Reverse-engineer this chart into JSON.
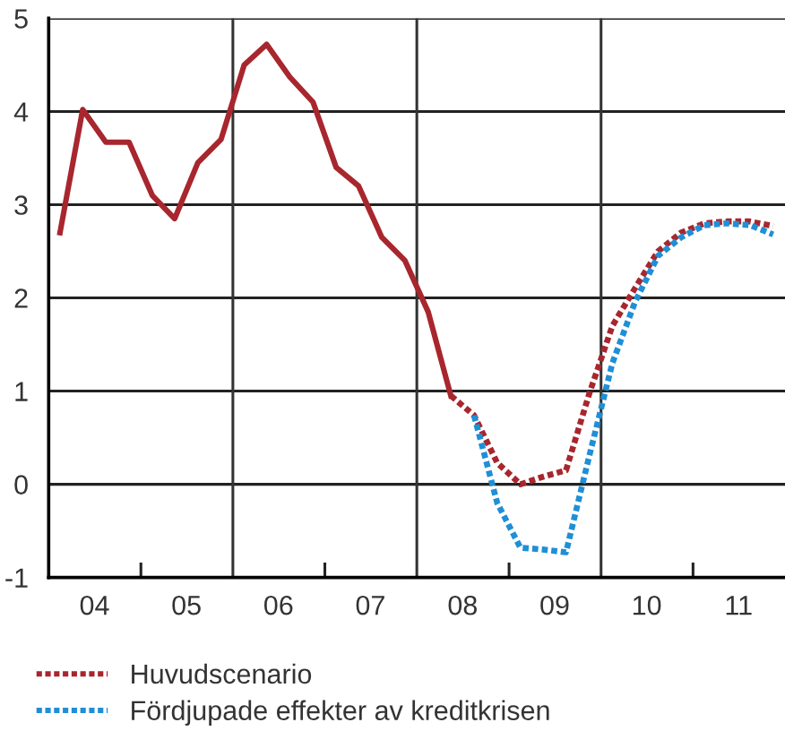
{
  "chart_data": {
    "type": "line",
    "xlim": [
      "2004-01-01",
      "2012-01-01"
    ],
    "ylim": [
      -1,
      5
    ],
    "yticks": [
      -1,
      0,
      1,
      2,
      3,
      4,
      5
    ],
    "xticks": [
      {
        "value": "2005-01-01",
        "label": null
      },
      {
        "value": "2007-01-01",
        "label": null
      },
      {
        "value": "2009-01-01",
        "label": null
      },
      {
        "value": "2011-01-01",
        "label": null
      },
      {
        "value": "2004-07-01",
        "label": "04"
      },
      {
        "value": "2005-07-01",
        "label": "05"
      },
      {
        "value": "2006-07-01",
        "label": "06"
      },
      {
        "value": "2007-07-01",
        "label": "07"
      },
      {
        "value": "2008-07-01",
        "label": "08"
      },
      {
        "value": "2009-07-01",
        "label": "09"
      },
      {
        "value": "2010-07-01",
        "label": "10"
      },
      {
        "value": "2011-07-01",
        "label": "11"
      }
    ],
    "ref_lines": [
      {
        "axis": "x",
        "value": "2006-01-01",
        "color": "#333333"
      },
      {
        "axis": "x",
        "value": "2008-01-01",
        "color": "#333333"
      },
      {
        "axis": "x",
        "value": "2010-01-01",
        "color": "#333333"
      }
    ],
    "grid": "y",
    "legend": "bottom",
    "marker": "none",
    "series": [
      {
        "color": "#a8262e",
        "line_style": "solid",
        "x": [
          "2004-02-15",
          "2004-05-15",
          "2004-08-15",
          "2004-11-15",
          "2005-02-15",
          "2005-05-15",
          "2005-08-15",
          "2005-11-15",
          "2006-02-15",
          "2006-05-15",
          "2006-08-15",
          "2006-11-15",
          "2007-02-15",
          "2007-05-15",
          "2007-08-15",
          "2007-11-15",
          "2008-02-15",
          "2008-05-15"
        ],
        "values": [
          2.7,
          4.02,
          3.67,
          3.67,
          3.1,
          2.85,
          3.45,
          3.7,
          4.5,
          4.72,
          4.37,
          4.1,
          3.4,
          3.2,
          2.65,
          2.4,
          1.85,
          0.95
        ]
      },
      {
        "name": "Huvudscenario",
        "color": "#a8262e",
        "line_style": "dotted",
        "x": [
          "2008-05-15",
          "2008-08-15",
          "2008-11-15",
          "2009-02-15",
          "2009-05-15",
          "2009-08-15",
          "2009-11-15",
          "2010-02-15",
          "2010-05-15",
          "2010-08-15",
          "2010-11-15",
          "2011-02-15",
          "2011-05-15",
          "2011-08-15",
          "2011-11-15"
        ],
        "values": [
          0.95,
          0.74,
          0.23,
          0.0,
          0.08,
          0.15,
          0.97,
          1.7,
          2.1,
          2.5,
          2.7,
          2.8,
          2.82,
          2.82,
          2.77
        ]
      },
      {
        "name": "Fördjupade effekter av kreditkrisen",
        "color": "#1f8fd6",
        "line_style": "dotted",
        "x": [
          "2008-08-15",
          "2008-11-15",
          "2009-02-15",
          "2009-05-15",
          "2009-08-15",
          "2009-11-15",
          "2010-02-15",
          "2010-05-15",
          "2010-08-15",
          "2010-11-15",
          "2011-02-15",
          "2011-05-15",
          "2011-08-15",
          "2011-11-15"
        ],
        "values": [
          0.74,
          -0.2,
          -0.68,
          -0.7,
          -0.73,
          0.3,
          1.3,
          1.95,
          2.45,
          2.65,
          2.78,
          2.8,
          2.78,
          2.68
        ]
      }
    ]
  }
}
